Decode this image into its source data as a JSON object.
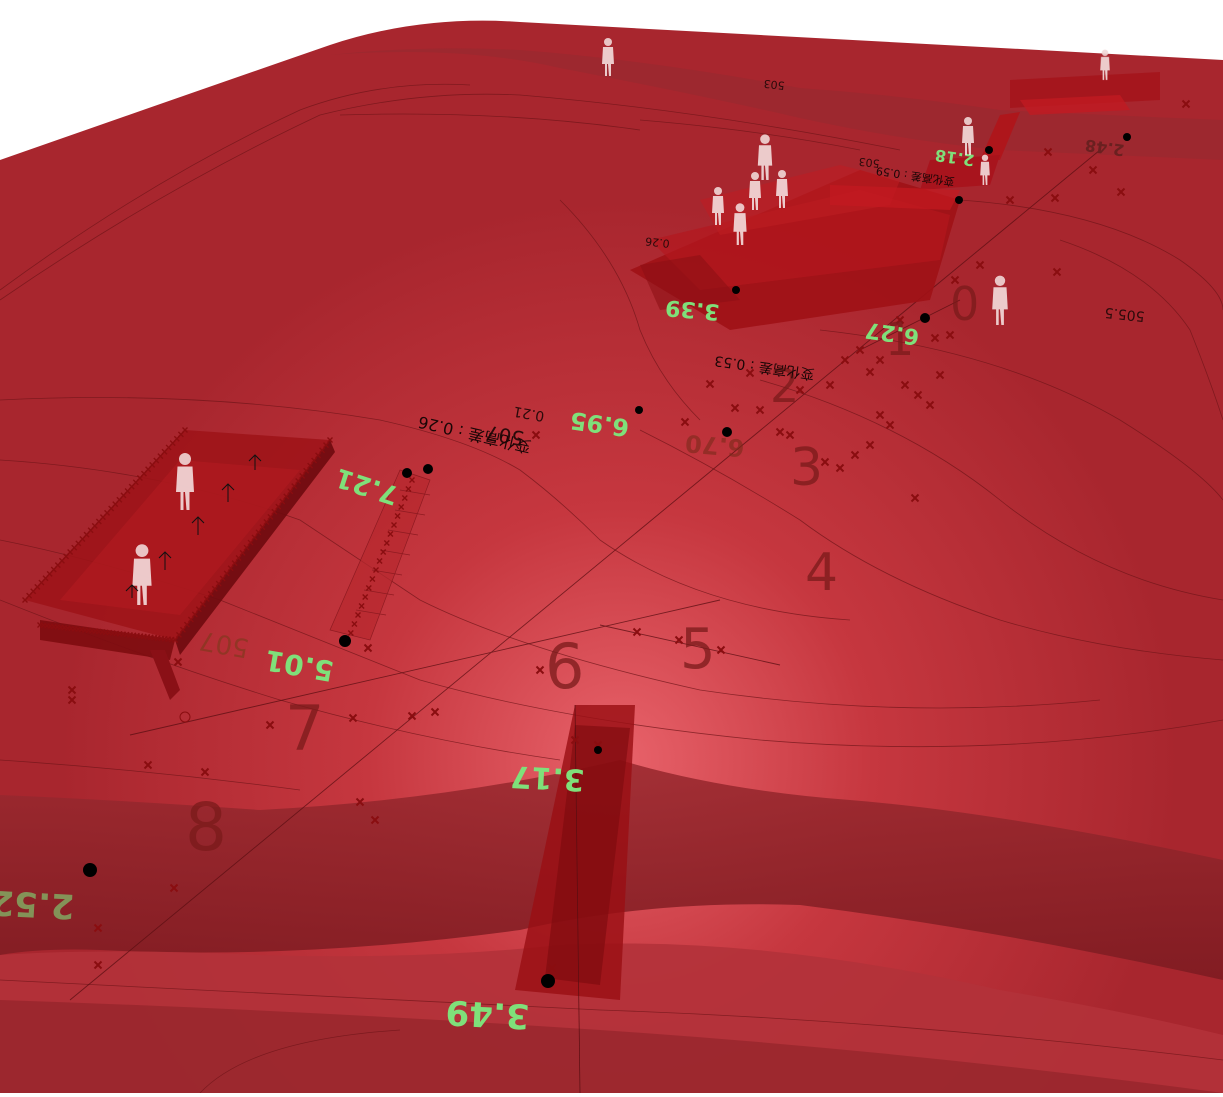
{
  "viewport": {
    "colors": {
      "terrain": "#c0333b",
      "terrain_dark": "#8e1f25",
      "terrain_light": "#e25a62",
      "structure": "#9b0f14",
      "marker_cross": "#8a0d10",
      "marker_dot": "#000000",
      "elevation_label": "#7fe07a",
      "station_number": "#7a1a1a",
      "contour": "#6e1418"
    },
    "station_numbers": [
      "0",
      "1",
      "2",
      "3",
      "4",
      "5",
      "6",
      "7",
      "8"
    ],
    "elevation_labels": [
      "6.27",
      "3.39",
      "6.95",
      "6.70",
      "7.21",
      "5.01",
      "3.17",
      "2.52",
      "3.49",
      "2.48",
      "2.18"
    ],
    "contour_labels": [
      "505.5",
      "503",
      "503",
      "507",
      "507",
      "0.26",
      "0.21",
      "0.53",
      "0.59"
    ],
    "annotations": [
      "变化高差 : 0.53",
      "变化高差 : 0.26",
      "变化高差 : 0.59"
    ],
    "figures_icon": "person-silhouette-icon"
  }
}
